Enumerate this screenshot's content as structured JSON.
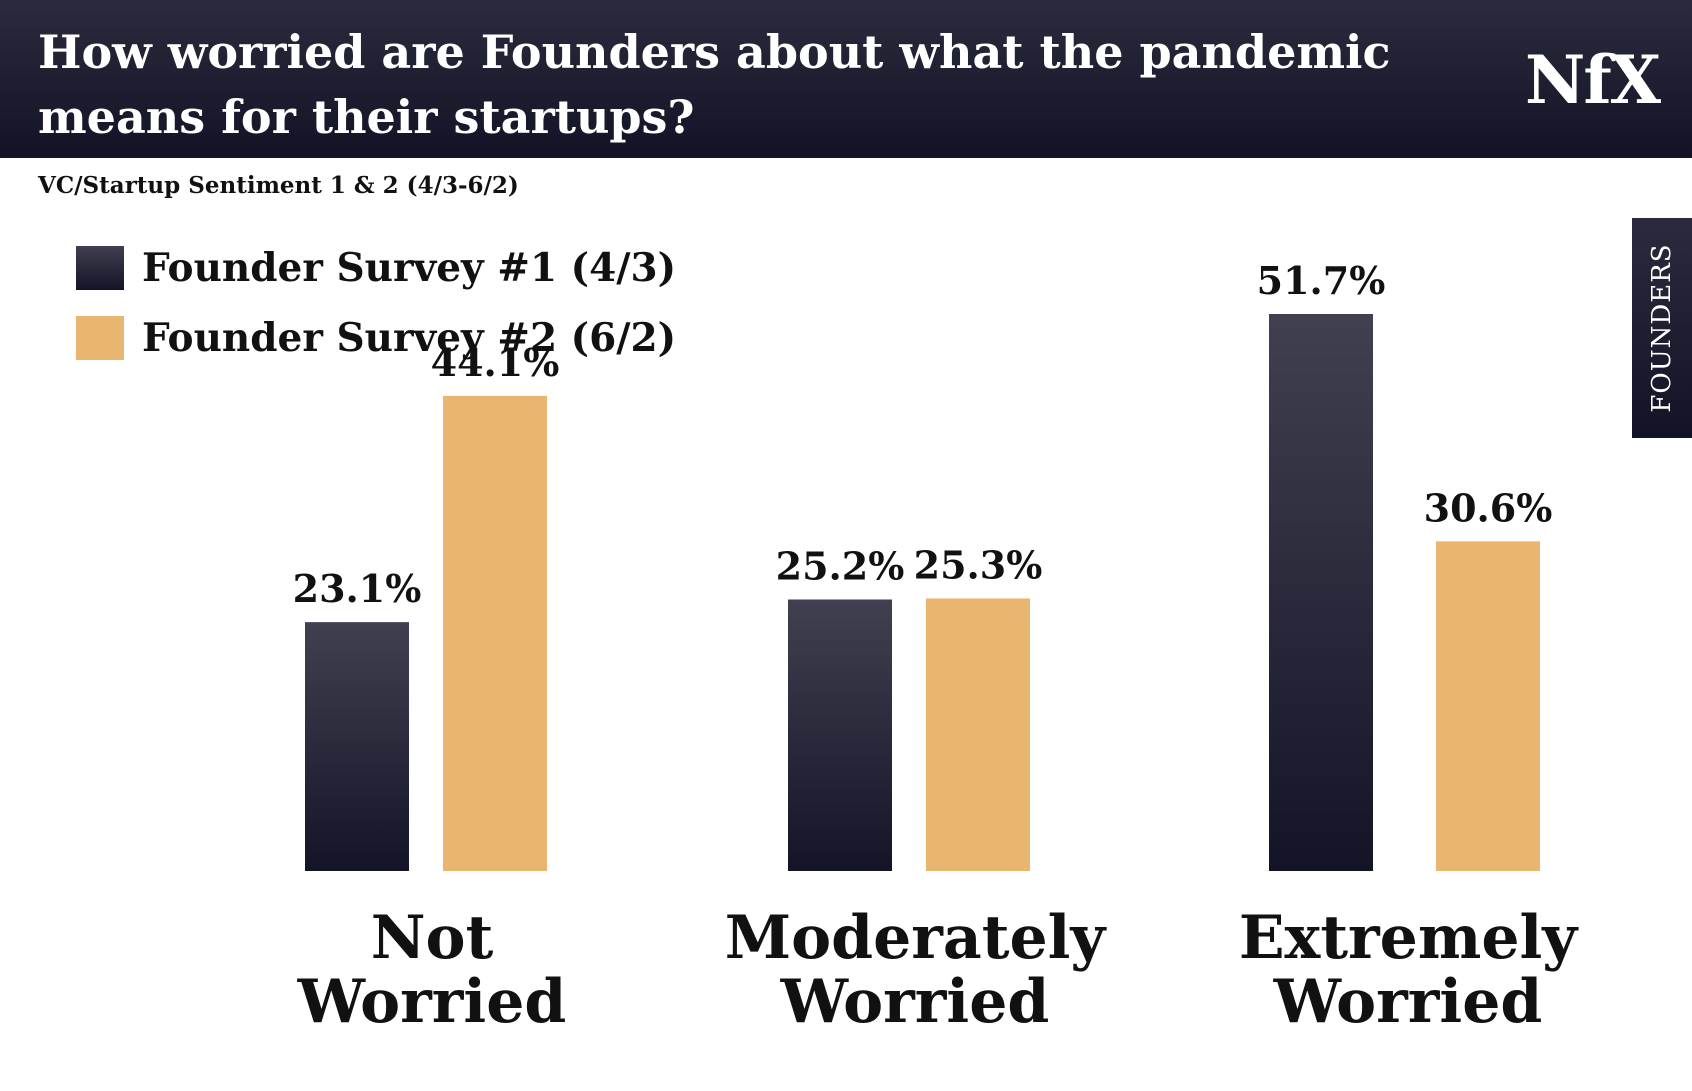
{
  "header": {
    "title": "How worried are Founders about what the pandemic means for their startups?",
    "logo_text": "NfX"
  },
  "subtitle": "VC/Startup Sentiment 1 & 2 (4/3-6/2)",
  "side_tab": {
    "label": "FOUNDERS"
  },
  "colors": {
    "survey1_top": "#404050",
    "survey1_bottom": "#141428",
    "survey2": "#e9b66f",
    "header_bg": "#1a1a2e"
  },
  "chart_data": {
    "type": "bar",
    "title": "How worried are Founders about what the pandemic means for their startups?",
    "subtitle": "VC/Startup Sentiment 1 & 2 (4/3-6/2)",
    "categories": [
      "Not Worried",
      "Moderately Worried",
      "Extremely Worried"
    ],
    "category_lines": [
      [
        "Not",
        "Worried"
      ],
      [
        "Moderately",
        "Worried"
      ],
      [
        "Extremely",
        "Worried"
      ]
    ],
    "series": [
      {
        "name": "Founder Survey #1 (4/3)",
        "values": [
          23.1,
          25.2,
          51.7
        ],
        "labels": [
          "23.1%",
          "25.2%",
          "51.7%"
        ]
      },
      {
        "name": "Founder Survey #2 (6/2)",
        "values": [
          44.1,
          25.3,
          30.6
        ],
        "labels": [
          "44.1%",
          "25.3%",
          "30.6%"
        ]
      }
    ],
    "ylim": [
      0,
      51.7
    ],
    "legend": "top-left",
    "grid": false
  }
}
